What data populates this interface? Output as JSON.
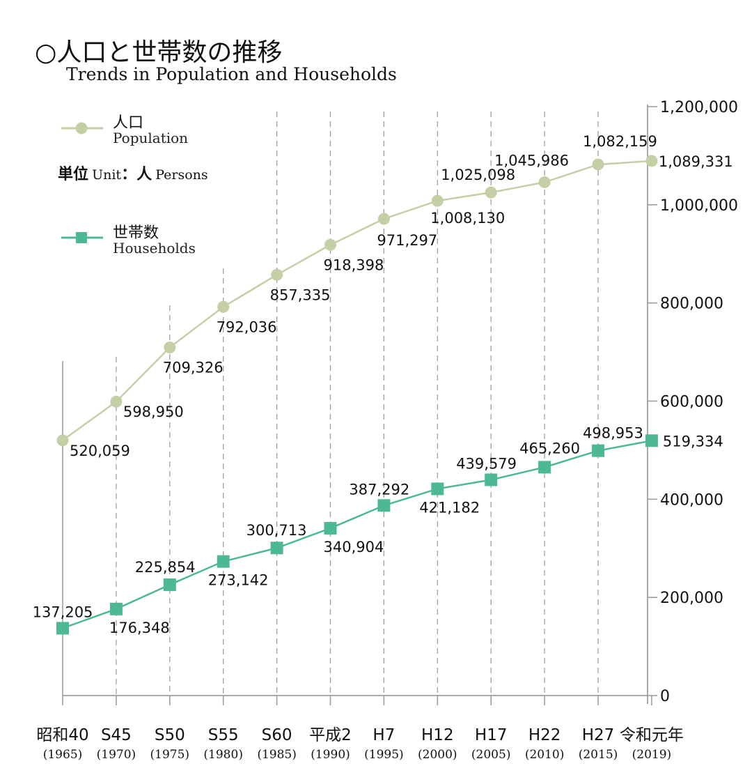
{
  "header": {
    "title_jp": "○人口と世帯数の推移",
    "title_en": "Trends in Population and Households"
  },
  "legend": {
    "population_jp": "人口",
    "population_en": "Population",
    "households_jp": "世帯数",
    "households_en": "Households"
  },
  "unit": {
    "label_jp": "単位",
    "label_en": "Unit",
    "sep": "：",
    "value_jp": "人",
    "value_en": "Persons"
  },
  "colors": {
    "population": "#c5cfa6",
    "households": "#4db896",
    "grid": "#9e9e9e",
    "axis": "#9e9e9e"
  },
  "chart_data": {
    "type": "line",
    "categories": [
      "昭和40",
      "S45",
      "S50",
      "S55",
      "S60",
      "平成2",
      "H7",
      "H12",
      "H17",
      "H22",
      "H27",
      "令和元年"
    ],
    "category_years": [
      "(1965)",
      "(1970)",
      "(1975)",
      "(1980)",
      "(1985)",
      "(1990)",
      "(1995)",
      "(2000)",
      "(2005)",
      "(2010)",
      "(2015)",
      "(2019)"
    ],
    "series": [
      {
        "name": "人口 Population",
        "marker": "circle",
        "values": [
          520059,
          598950,
          709326,
          792036,
          857335,
          918398,
          971297,
          1008130,
          1025098,
          1045986,
          1082159,
          1089331
        ],
        "labels": [
          "520,059",
          "598,950",
          "709,326",
          "792,036",
          "857,335",
          "918,398",
          "971,297",
          "1,008,130",
          "1,025,098",
          "1,045,986",
          "1,082,159",
          "1,089,331"
        ]
      },
      {
        "name": "世帯数 Households",
        "marker": "square",
        "values": [
          137205,
          176348,
          225854,
          273142,
          300713,
          340904,
          387292,
          421182,
          439579,
          465260,
          498953,
          519334
        ],
        "labels": [
          "137,205",
          "176,348",
          "225,854",
          "273,142",
          "300,713",
          "340,904",
          "387,292",
          "421,182",
          "439,579",
          "465,260",
          "498,953",
          "519,334"
        ]
      }
    ],
    "yticks": [
      0,
      200000,
      400000,
      600000,
      800000,
      1000000,
      1200000
    ],
    "ytick_labels": [
      "0",
      "200,000",
      "400,000",
      "600,000",
      "800,000",
      "1,000,000",
      "1,200,000"
    ],
    "ylim": [
      0,
      1200000
    ],
    "y_axis_side": "right",
    "grid": "vertical dashed"
  }
}
